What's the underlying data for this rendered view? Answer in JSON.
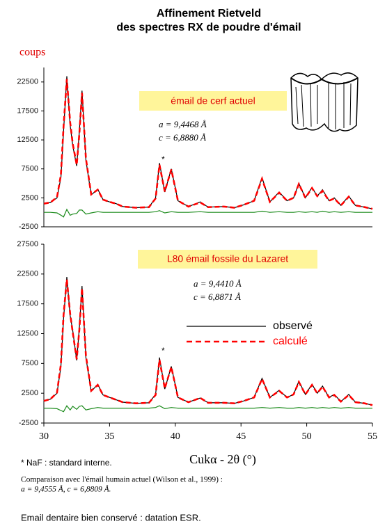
{
  "title": [
    "Affinement Rietveld",
    "des spectres RX de poudre d'émail"
  ],
  "chart_data": [
    {
      "type": "line",
      "y_label": "coups",
      "annotations": [
        "émail de cerf actuel",
        "a = 9,4468 Å",
        "c = 6,8880 Å",
        "*"
      ],
      "xlim": [
        30,
        55
      ],
      "ylim": [
        -2500,
        25000
      ],
      "yticks": [
        -2500,
        2500,
        7500,
        12500,
        17500,
        22500
      ],
      "x": [
        30,
        30.5,
        31,
        31.3,
        31.5,
        31.75,
        32,
        32.2,
        32.5,
        32.7,
        32.9,
        33.2,
        33.6,
        34.1,
        34.5,
        35,
        35.5,
        36,
        37,
        38,
        38.5,
        38.8,
        39.2,
        39.7,
        40.2,
        41,
        41.9,
        42.5,
        43.7,
        44.5,
        45.2,
        46,
        46.6,
        47.2,
        47.9,
        48.5,
        49,
        49.4,
        49.9,
        50.4,
        50.8,
        51.2,
        51.7,
        52.1,
        52.6,
        53.2,
        53.7,
        54.4,
        55
      ],
      "series": [
        {
          "name": "observé",
          "color": "#000000",
          "dash": false,
          "values": [
            1500,
            1700,
            2500,
            6000,
            14000,
            23500,
            15000,
            11500,
            8000,
            14000,
            21000,
            9000,
            3000,
            4000,
            2200,
            1800,
            1500,
            1000,
            800,
            900,
            2500,
            8500,
            3500,
            7500,
            2000,
            1000,
            1800,
            900,
            1000,
            800,
            1300,
            2000,
            6000,
            1800,
            3500,
            2000,
            2500,
            5000,
            2500,
            4300,
            2800,
            3900,
            2000,
            2500,
            1200,
            2800,
            1200,
            900,
            600
          ]
        },
        {
          "name": "calculé",
          "color": "#ff0000",
          "dash": true,
          "values": [
            1500,
            1700,
            2600,
            6500,
            14800,
            23000,
            15500,
            11800,
            8200,
            13600,
            20600,
            9300,
            3100,
            3900,
            2200,
            1800,
            1500,
            1000,
            800,
            900,
            2400,
            8200,
            3600,
            7400,
            2000,
            1000,
            1700,
            900,
            1000,
            800,
            1300,
            2000,
            5800,
            1800,
            3400,
            2000,
            2500,
            4900,
            2500,
            4200,
            2800,
            3700,
            2000,
            2400,
            1200,
            2700,
            1200,
            900,
            600
          ]
        },
        {
          "name": "différence",
          "color": "#1a8a1a",
          "dash": false,
          "values": [
            0,
            0,
            -100,
            -500,
            -800,
            500,
            -500,
            -300,
            -200,
            400,
            400,
            -300,
            -100,
            100,
            0,
            0,
            0,
            0,
            0,
            0,
            100,
            300,
            -100,
            100,
            0,
            0,
            100,
            0,
            0,
            0,
            0,
            0,
            200,
            0,
            100,
            0,
            0,
            100,
            0,
            100,
            0,
            200,
            0,
            100,
            0,
            100,
            0,
            0,
            0
          ]
        }
      ]
    },
    {
      "type": "line",
      "x_label": "Cukα - 2θ (°)",
      "annotations": [
        "L80 émail fossile du Lazaret",
        "a = 9,4410 Å",
        "c = 6,8871 Å",
        "*"
      ],
      "legend": "center right",
      "xlim": [
        30,
        55
      ],
      "ylim": [
        -2500,
        27500
      ],
      "xticks": [
        30,
        35,
        40,
        45,
        50,
        55
      ],
      "yticks": [
        -2500,
        2500,
        7500,
        12500,
        17500,
        22500,
        27500
      ],
      "x": [
        30,
        30.5,
        31,
        31.3,
        31.5,
        31.75,
        32,
        32.2,
        32.5,
        32.7,
        32.9,
        33.2,
        33.6,
        34.1,
        34.5,
        35,
        35.5,
        36,
        37,
        38,
        38.5,
        38.8,
        39.2,
        39.7,
        40.2,
        41,
        41.9,
        42.5,
        43.7,
        44.5,
        45.2,
        46,
        46.6,
        47.2,
        47.9,
        48.5,
        49,
        49.4,
        49.9,
        50.4,
        50.8,
        51.2,
        51.7,
        52.1,
        52.6,
        53.2,
        53.7,
        54.4,
        55
      ],
      "series": [
        {
          "name": "observé",
          "color": "#000000",
          "dash": false,
          "values": [
            1200,
            1500,
            2500,
            7000,
            15000,
            22000,
            15500,
            13000,
            8000,
            13500,
            20500,
            8500,
            2800,
            4000,
            2200,
            1800,
            1400,
            1000,
            800,
            900,
            2300,
            8500,
            3200,
            7000,
            1800,
            1000,
            1700,
            900,
            900,
            800,
            1200,
            1800,
            5000,
            1800,
            3000,
            1800,
            2300,
            4500,
            2300,
            4000,
            2500,
            3700,
            1800,
            2300,
            1100,
            2300,
            1000,
            800,
            500
          ]
        },
        {
          "name": "calculé",
          "color": "#ff0000",
          "dash": true,
          "values": [
            1200,
            1500,
            2600,
            7400,
            15600,
            21600,
            15800,
            12700,
            8200,
            13200,
            20100,
            8800,
            2900,
            3900,
            2200,
            1800,
            1400,
            1000,
            800,
            900,
            2200,
            8100,
            3300,
            6900,
            1800,
            1000,
            1700,
            900,
            900,
            800,
            1200,
            1800,
            4900,
            1800,
            2900,
            1800,
            2300,
            4400,
            2300,
            3900,
            2500,
            3600,
            1800,
            2200,
            1100,
            2200,
            1000,
            800,
            500
          ]
        },
        {
          "name": "différence",
          "color": "#1a8a1a",
          "dash": false,
          "values": [
            0,
            0,
            -100,
            -400,
            -600,
            400,
            -300,
            300,
            -200,
            300,
            400,
            -300,
            -100,
            100,
            0,
            0,
            0,
            0,
            0,
            0,
            100,
            400,
            -100,
            100,
            0,
            0,
            0,
            0,
            0,
            0,
            0,
            0,
            100,
            0,
            100,
            0,
            0,
            100,
            0,
            100,
            0,
            100,
            0,
            100,
            0,
            100,
            0,
            0,
            0
          ]
        }
      ]
    }
  ],
  "notes": [
    "* NaF : standard interne.",
    "Comparaison avec l'émail humain actuel (Wilson et al., 1999) :",
    "a = 9,4555  Å, c = 6,8809  Å.",
    "Email dentaire bien conservé : datation ESR."
  ]
}
